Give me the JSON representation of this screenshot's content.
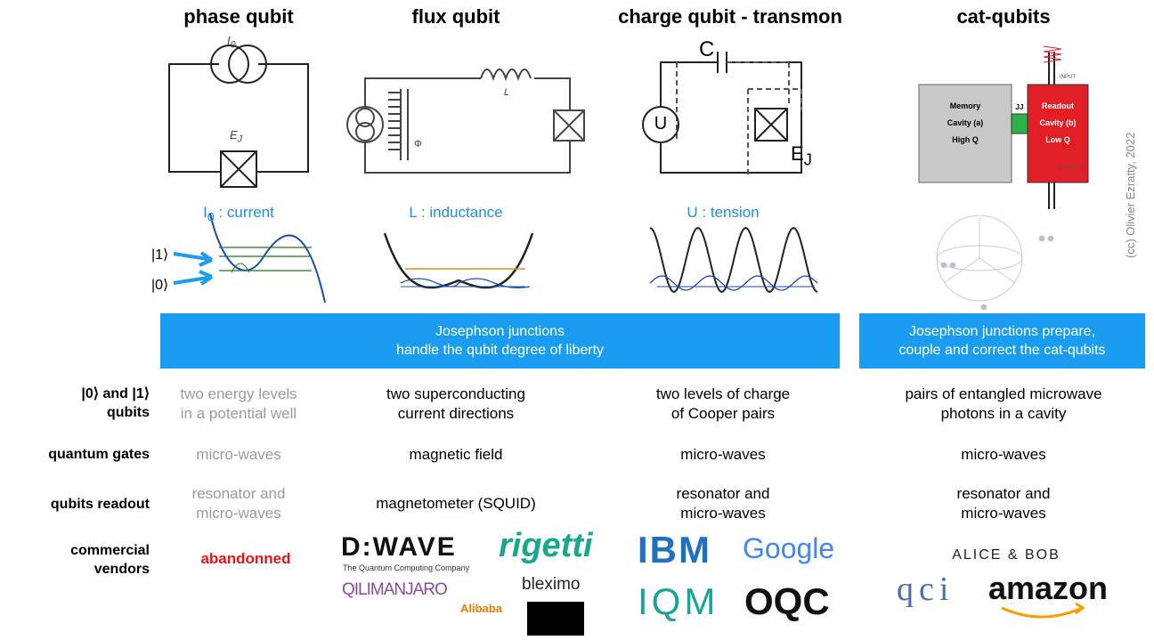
{
  "titles": [
    "phase qubit",
    "flux qubit",
    "charge qubit - transmon",
    "cat-qubits"
  ],
  "circuits": {
    "phase": {
      "source": {
        "main": "I",
        "sub": "0"
      },
      "junction": {
        "main": "E",
        "sub": "J"
      }
    },
    "flux": {
      "inductor": "L",
      "flux": "Φ"
    },
    "charge": {
      "capacitor": "C",
      "source": "U",
      "junction": {
        "main": "E",
        "sub": "J"
      }
    },
    "cat": {
      "memory": [
        "Memory",
        "Cavity (a)",
        "High Q"
      ],
      "jj": "JJ",
      "readout": [
        "Readout",
        "Cavity (b)",
        "Low Q"
      ],
      "input": "INPUT",
      "output": "OUTPUT"
    }
  },
  "parameters": [
    {
      "main": "I",
      "sub": "0",
      "text": " : current"
    },
    {
      "text": "L : inductance"
    },
    {
      "text": "U : tension"
    }
  ],
  "states": [
    "|1⟩",
    "|0⟩"
  ],
  "banners": [
    [
      "Josephson junctions",
      "handle the qubit degree of liberty"
    ],
    [
      "Josephson junctions prepare,",
      "couple and correct the cat-qubits"
    ]
  ],
  "credit": "(cc) Olivier Ezratty, 2022",
  "table": {
    "row_labels": [
      [
        "|0⟩ and |1⟩",
        "qubits"
      ],
      [
        "quantum gates"
      ],
      [
        "qubits readout"
      ],
      [
        "commercial",
        "vendors"
      ]
    ],
    "rows": [
      [
        [
          "two energy levels",
          "in a potential well"
        ],
        [
          "two superconducting",
          "current directions"
        ],
        [
          "two levels of charge",
          "of Cooper pairs"
        ],
        [
          "pairs of entangled microwave",
          "photons in a cavity"
        ]
      ],
      [
        [
          "micro-waves"
        ],
        [
          "magnetic field"
        ],
        [
          "micro-waves"
        ],
        [
          "micro-waves"
        ]
      ],
      [
        [
          "resonator and",
          "micro-waves"
        ],
        [
          "magnetometer (SQUID)"
        ],
        [
          "resonator and",
          "micro-waves"
        ],
        [
          "resonator and",
          "micro-waves"
        ]
      ]
    ],
    "abandoned": "abandonned"
  },
  "vendors": {
    "dwave": "D:WAVE",
    "dwave_tagline": "The Quantum Computing Company",
    "rigetti": "rigetti",
    "qilimanjaro": "QILIMANJARO",
    "alibaba": "Alibaba",
    "bleximo": "bleximo",
    "ibm": "IBM",
    "google": "Google",
    "iqm": "IQM",
    "oqc": "OQC",
    "alicebob": "ALICE & BOB",
    "qci": "qci",
    "amazon": "amazon"
  }
}
